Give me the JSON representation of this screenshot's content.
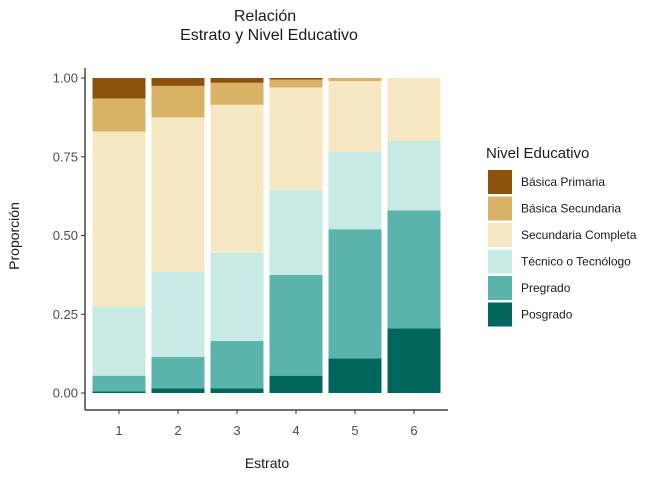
{
  "chart_data": {
    "type": "bar",
    "stacked": true,
    "title_lines": [
      "Relación",
      "Estrato y Nivel Educativo"
    ],
    "xlabel": "Estrato",
    "ylabel": "Proporción",
    "categories": [
      "1",
      "2",
      "3",
      "4",
      "5",
      "6"
    ],
    "ylim": [
      0,
      1
    ],
    "yticks": [
      "0.00",
      "0.25",
      "0.50",
      "0.75",
      "1.00"
    ],
    "legend": {
      "title": "Nivel Educativo",
      "position": "right"
    },
    "series": [
      {
        "name": "Básica Primaria",
        "color": "#8C510A",
        "values": [
          0.065,
          0.025,
          0.015,
          0.005,
          0.0,
          0.0
        ]
      },
      {
        "name": "Básica Secundaria",
        "color": "#D8B365",
        "values": [
          0.105,
          0.1,
          0.07,
          0.025,
          0.01,
          0.0
        ]
      },
      {
        "name": "Secundaria Completa",
        "color": "#F6E8C3",
        "values": [
          0.555,
          0.49,
          0.47,
          0.325,
          0.225,
          0.2
        ]
      },
      {
        "name": "Técnico o Tecnólogo",
        "color": "#C7EAE5",
        "values": [
          0.22,
          0.27,
          0.28,
          0.27,
          0.245,
          0.22
        ]
      },
      {
        "name": "Pregrado",
        "color": "#5AB4AC",
        "values": [
          0.05,
          0.1,
          0.15,
          0.32,
          0.41,
          0.375
        ]
      },
      {
        "name": "Posgrado",
        "color": "#01665E",
        "values": [
          0.005,
          0.015,
          0.015,
          0.055,
          0.11,
          0.205
        ]
      }
    ]
  }
}
